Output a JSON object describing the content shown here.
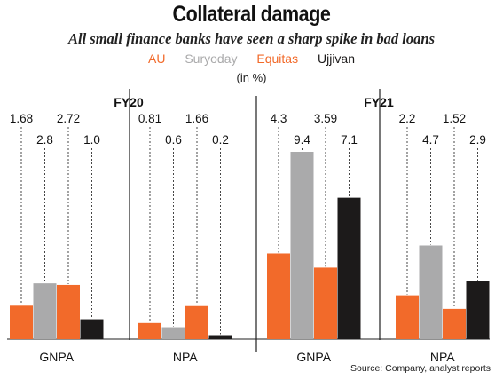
{
  "title": "Collateral damage",
  "subtitle": "All small finance banks have seen a sharp spike in bad loans",
  "units": "(in %)",
  "source": "Source: Company, analyst reports",
  "colors": {
    "AU": "#f26a2a",
    "Suryoday": "#aaaaab",
    "Equitas": "#f26a2a",
    "Ujjivan": "#1c1a1a"
  },
  "chart_data": {
    "type": "bar",
    "series": [
      {
        "name": "AU",
        "color": "#f26a2a"
      },
      {
        "name": "Suryoday",
        "color": "#aaaaab"
      },
      {
        "name": "Equitas",
        "color": "#f26a2a"
      },
      {
        "name": "Ujjivan",
        "color": "#1c1a1a"
      }
    ],
    "panels": [
      {
        "year": "FY20",
        "groups": [
          {
            "category": "GNPA",
            "values": [
              1.68,
              2.8,
              2.72,
              1.0
            ],
            "labels": [
              "1.68",
              "2.8",
              "2.72",
              "1.0"
            ]
          },
          {
            "category": "NPA",
            "values": [
              0.81,
              0.6,
              1.66,
              0.2
            ],
            "labels": [
              "0.81",
              "0.6",
              "1.66",
              "0.2"
            ]
          }
        ]
      },
      {
        "year": "FY21",
        "groups": [
          {
            "category": "GNPA",
            "values": [
              4.3,
              9.4,
              3.59,
              7.1
            ],
            "labels": [
              "4.3",
              "9.4",
              "3.59",
              "7.1"
            ]
          },
          {
            "category": "NPA",
            "values": [
              2.2,
              4.7,
              1.52,
              2.9
            ],
            "labels": [
              "2.2",
              "4.7",
              "1.52",
              "2.9"
            ]
          }
        ]
      }
    ]
  }
}
